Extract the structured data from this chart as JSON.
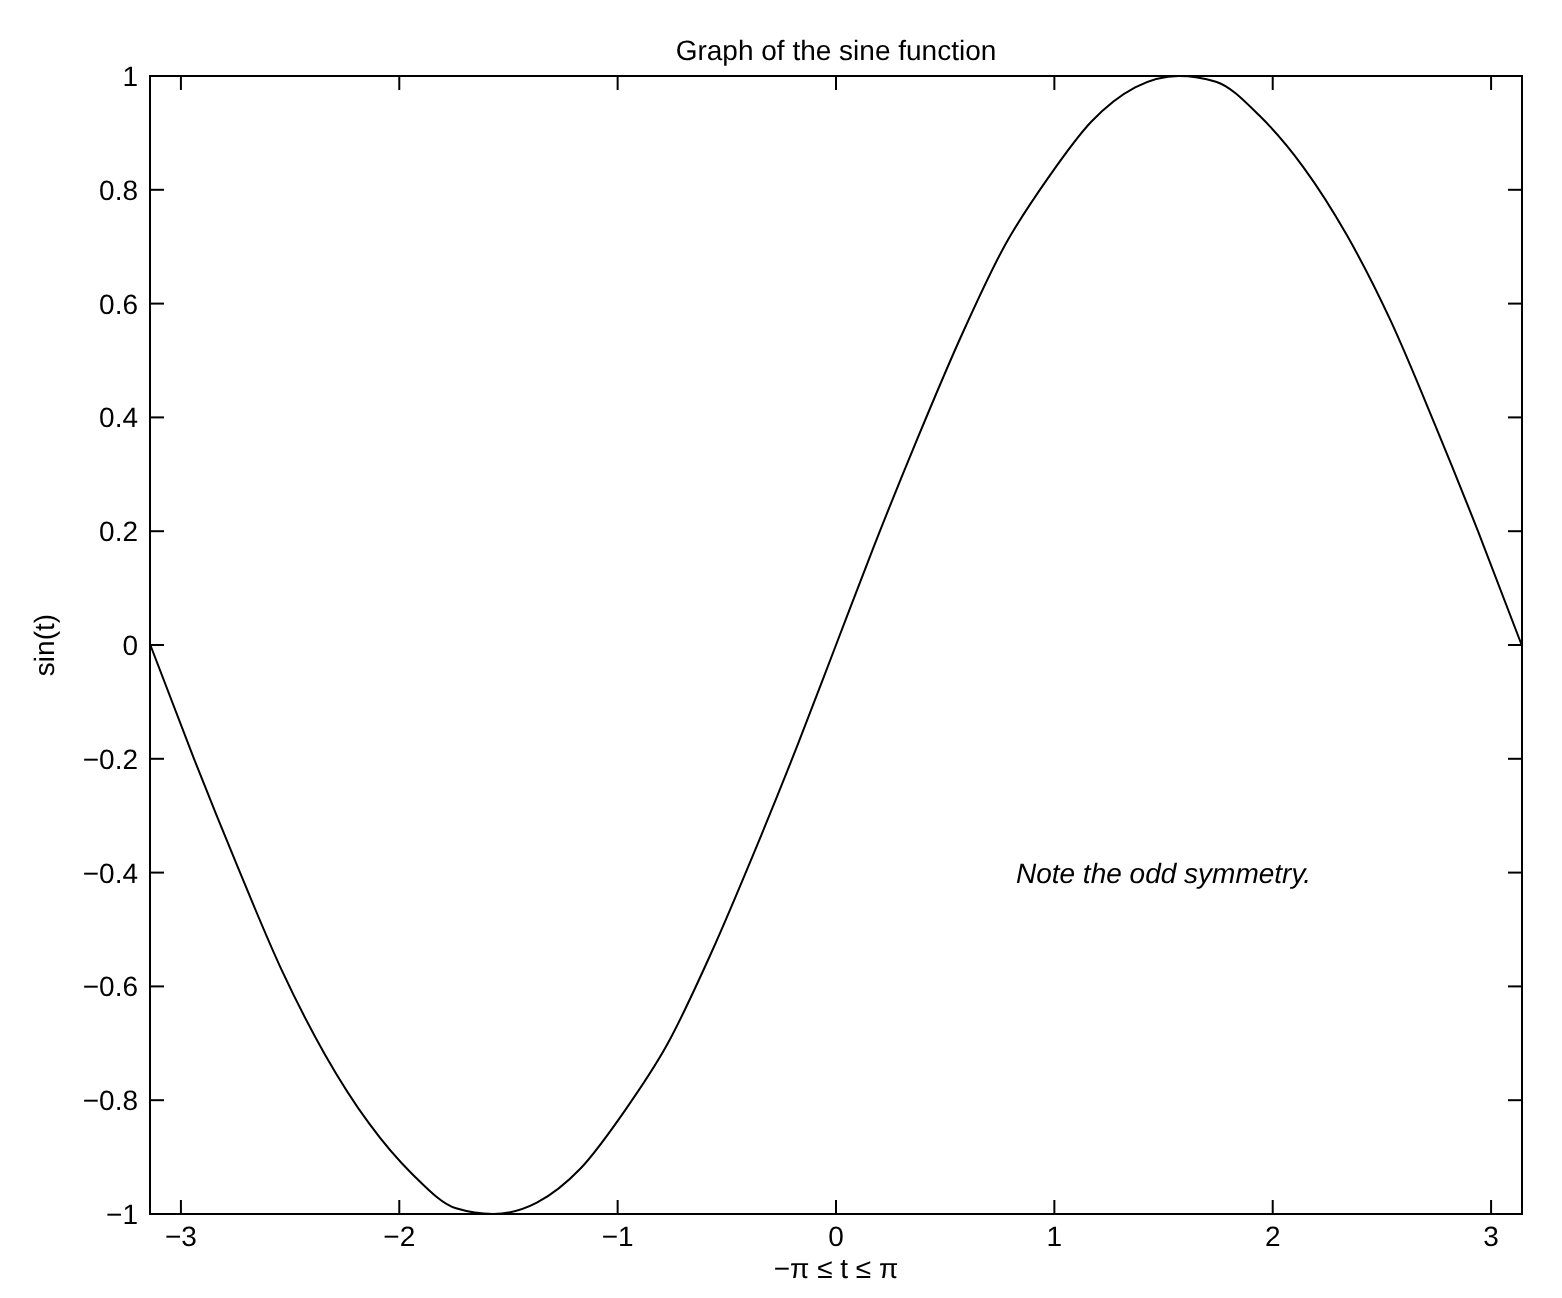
{
  "chart_data": {
    "type": "line",
    "title": "Graph of the sine function",
    "xlabel": "−π ≤ t ≤ π",
    "ylabel": "sin(t)",
    "annotations": [
      "Note the odd symmetry."
    ],
    "x": [
      -3.14,
      -2.94,
      -2.74,
      -2.54,
      -2.34,
      -2.14,
      -1.94,
      -1.74,
      -1.57,
      -1.37,
      -1.17,
      -0.97,
      -0.77,
      -0.57,
      -0.37,
      -0.17,
      0,
      0.17,
      0.37,
      0.57,
      0.77,
      0.97,
      1.17,
      1.37,
      1.57,
      1.74,
      1.94,
      2.14,
      2.34,
      2.54,
      2.74,
      2.94,
      3.14
    ],
    "series": [
      {
        "color": "#000000",
        "values": [
          0,
          -0.2,
          -0.39,
          -0.57,
          -0.72,
          -0.84,
          -0.93,
          -0.99,
          -1,
          -0.98,
          -0.92,
          -0.82,
          -0.7,
          -0.54,
          -0.36,
          -0.17,
          0,
          0.17,
          0.36,
          0.54,
          0.7,
          0.82,
          0.92,
          0.98,
          1,
          0.99,
          0.93,
          0.84,
          0.72,
          0.57,
          0.39,
          0.2,
          0
        ]
      }
    ],
    "xlim": [
      -3.1416,
      3.1416
    ],
    "xticks": [
      {
        "value": -3,
        "label": "−3"
      },
      {
        "value": -2,
        "label": "−2"
      },
      {
        "value": -1,
        "label": "−1"
      },
      0,
      1,
      2,
      3
    ],
    "ylim": [
      -1,
      1
    ],
    "yticks": [
      {
        "value": -1,
        "label": "−1"
      },
      {
        "value": -0.8,
        "label": "−0.8"
      },
      {
        "value": -0.6,
        "label": "−0.6"
      },
      {
        "value": -0.4,
        "label": "−0.4"
      },
      {
        "value": -0.2,
        "label": "−0.2"
      },
      0,
      0.2,
      0.4,
      0.6,
      0.8,
      1
    ],
    "grid": false,
    "marker": "none",
    "line_style": "solid"
  }
}
